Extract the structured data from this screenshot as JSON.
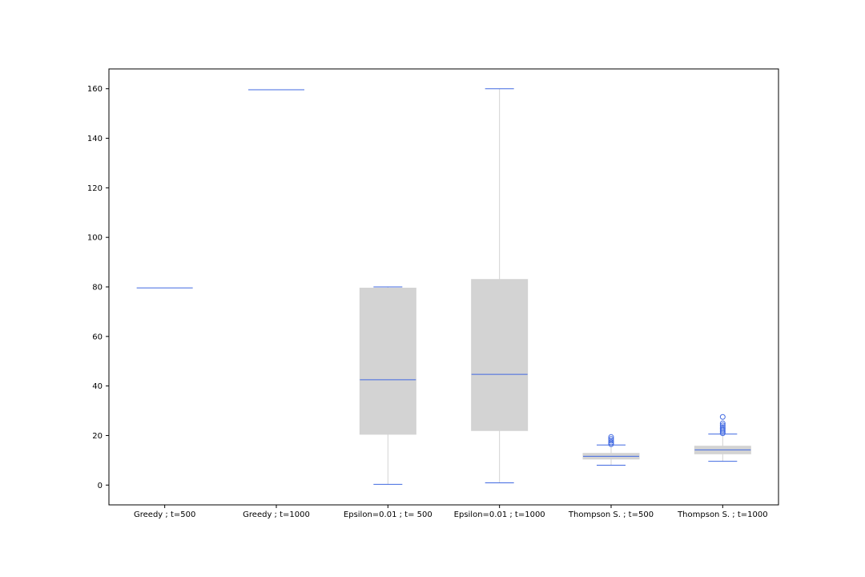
{
  "chart_data": {
    "type": "box",
    "title": "",
    "xlabel": "",
    "ylabel": "",
    "ylim": [
      -8,
      168
    ],
    "yticks": [
      0,
      20,
      40,
      60,
      80,
      100,
      120,
      140,
      160
    ],
    "grid": false,
    "colors": {
      "box_fill": "#d3d3d3",
      "whisker": "#d3d3d3",
      "median": "#4169e1",
      "caps": "#4169e1",
      "flier": "#4169e1"
    },
    "categories": [
      "Greedy ; t=500",
      "Greedy ; t=1000",
      "Epsilon=0.01 ; t= 500",
      "Epsilon=0.01 ; t=1000",
      "Thompson S. ; t=500",
      "Thompson S. ; t=1000"
    ],
    "boxes": [
      {
        "whislo": 79.6,
        "q1": 79.6,
        "med": 79.6,
        "q3": 79.6,
        "whishi": 79.6,
        "fliers": []
      },
      {
        "whislo": 159.6,
        "q1": 159.6,
        "med": 159.6,
        "q3": 159.6,
        "whishi": 159.6,
        "fliers": []
      },
      {
        "whislo": 0.3,
        "q1": 20.5,
        "med": 42.5,
        "q3": 79.5,
        "whishi": 80.0,
        "fliers": []
      },
      {
        "whislo": 0.9,
        "q1": 22.0,
        "med": 44.7,
        "q3": 83.0,
        "whishi": 160.0,
        "fliers": []
      },
      {
        "whislo": 8.0,
        "q1": 10.5,
        "med": 11.6,
        "q3": 12.8,
        "whishi": 16.2,
        "fliers": [
          16.5,
          17.2,
          17.9,
          18.6,
          19.4
        ]
      },
      {
        "whislo": 9.6,
        "q1": 12.6,
        "med": 14.2,
        "q3": 15.7,
        "whishi": 20.6,
        "fliers": [
          20.9,
          21.5,
          22.1,
          22.7,
          23.4,
          24.1,
          24.9,
          27.5
        ]
      }
    ]
  }
}
